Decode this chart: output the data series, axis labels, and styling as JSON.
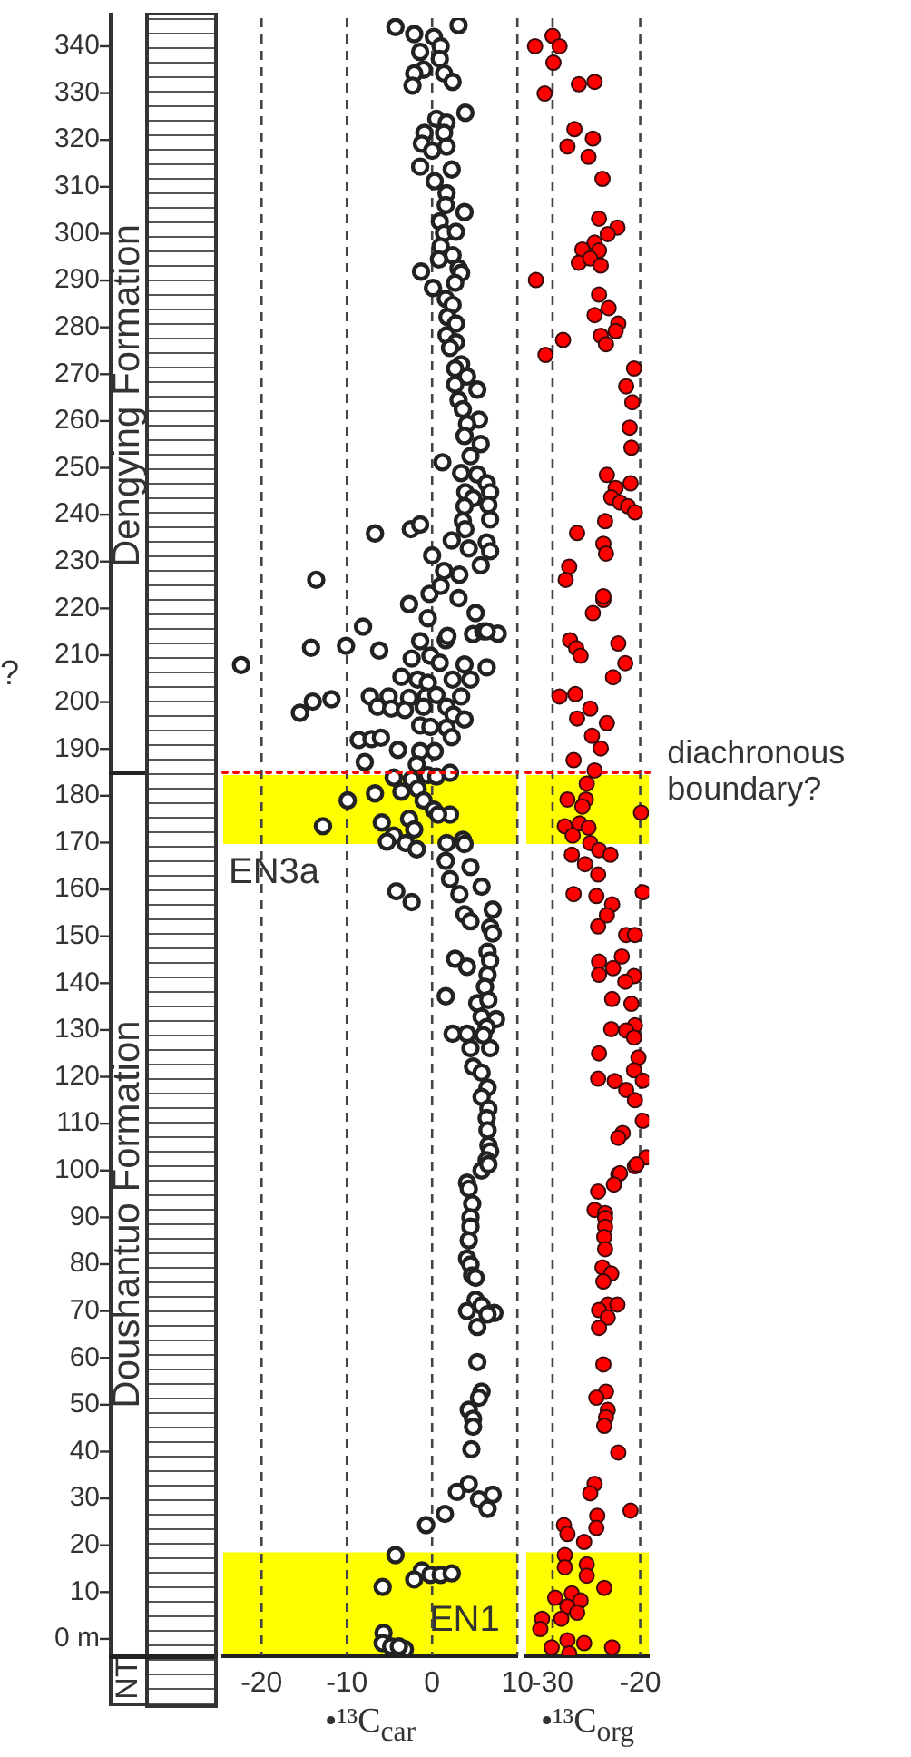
{
  "chart_data": [
    {
      "type": "scatter",
      "xlabel": "•¹³C$_{car}$",
      "xlim": [
        -24.5,
        10
      ],
      "xticks": [
        -20,
        -10,
        0,
        10
      ],
      "ylim": [
        -3.5,
        346
      ],
      "yticks": [
        {
          "value": 0,
          "label": "0 m"
        },
        10,
        20,
        30,
        40,
        50,
        60,
        70,
        80,
        90,
        100,
        110,
        120,
        130,
        140,
        150,
        160,
        170,
        180,
        190,
        200,
        210,
        220,
        230,
        240,
        250,
        260,
        270,
        280,
        290,
        300,
        310,
        320,
        330,
        340
      ],
      "grid": "x",
      "marker": "circle",
      "series": [
        {
          "color": "#222222",
          "x": [
            -4.3,
            3.1,
            -2.1,
            0.2,
            1.0,
            -1.4,
            0.9,
            -1.0,
            -2.1,
            1.4,
            2.4,
            -2.3,
            3.9,
            0.5,
            1.7,
            -0.9,
            1.4,
            -1.2,
            1.7,
            0,
            -1.4,
            2.3,
            0.3,
            1.7,
            1.6,
            3.8,
            0.9,
            1.4,
            2.8,
            1.0,
            2.4,
            0.8,
            3.1,
            -1.3,
            3.4,
            2.7,
            0.1,
            1.6,
            2.4,
            1.8,
            2.8,
            1.7,
            2.8,
            2.1,
            3.4,
            2.7,
            4.1,
            2.7,
            5.3,
            3.1,
            3.6,
            5.5,
            4.1,
            3.8,
            5.7,
            4.5,
            1.2,
            3.4,
            5.3,
            6.4,
            6.8,
            3.9,
            4.8,
            6.6,
            3.8,
            6.8,
            3.6,
            -2.5,
            -1.4,
            -6.7,
            3.9,
            2.3,
            6.4,
            4.3,
            6.8,
            0,
            5.7,
            1.4,
            3.2,
            -13.6,
            -0.3,
            1.0,
            3.1,
            -2.7,
            -0.5,
            5.1,
            -8.1,
            1.6,
            1.8,
            4.8,
            6.0,
            7.7,
            6.4,
            -14.2,
            -10.1,
            -6.2,
            -1.4,
            -2.4,
            -0.2,
            0.9,
            3.8,
            6.4,
            -22.4,
            -3.6,
            -1.7,
            -0.5,
            2.4,
            4.5,
            -5.1,
            -7.3,
            -2.7,
            -0.7,
            0.5,
            3.4,
            -11.8,
            -14,
            -15.5,
            -6.4,
            -4.8,
            -3.2,
            -1.0,
            1.7,
            2.5,
            3.8,
            -1.4,
            -0.2,
            1.7,
            -8.6,
            -7.1,
            -6.0,
            2.3,
            -4.0,
            -1.4,
            0.3,
            -7.9,
            -1.8,
            -4.5,
            -2.4,
            -0.5,
            2.1,
            0.5,
            -6.7,
            -3.6,
            -1.7,
            -9.9,
            -1.0,
            0.2,
            2.1,
            0.7,
            -2.7,
            -5.9,
            -12.8,
            -2.1,
            -4.5,
            -5.3,
            -3.1,
            -1.8,
            1.7,
            3.6,
            3.8,
            1.6,
            4.5,
            2.1,
            5.8,
            3.2,
            -4.2,
            -2.4,
            7.1,
            3.8,
            4.5,
            6.8,
            7.1,
            6.5,
            2.7,
            6.8,
            4.1,
            6.5,
            6.2,
            1.6,
            5.3,
            6.6,
            5.8,
            7.5,
            6.4,
            2.4,
            4.1,
            6.0,
            4.5,
            6.8,
            4.8,
            5.8,
            6.5,
            5.8,
            6.6,
            6.4,
            6.5,
            6.6,
            6.8,
            6.4,
            5.8,
            6.6,
            4.1,
            4.3,
            4.7,
            4.5,
            4.5,
            4.3,
            4.1,
            4.5,
            4.7,
            5.1,
            5.1,
            4.1,
            5.8,
            7.3,
            6.5,
            5.3,
            5.3,
            5.8,
            5.5,
            4.3,
            4.8,
            4.8,
            4.6,
            4.3,
            2.9,
            7.1,
            5.5,
            6.5,
            1.5,
            -0.7,
            -4.3,
            -1.2,
            -0.2,
            1.0,
            2.3,
            -2.1,
            -5.8,
            -5.7,
            -5.8,
            -4.8,
            -3.2,
            -3.9
          ],
          "values": [
            344.1,
            344.5,
            342.6,
            342,
            340,
            338.8,
            337.3,
            335,
            334.2,
            334.2,
            332.4,
            331.6,
            325.8,
            324.5,
            323.7,
            321.5,
            321.5,
            319.2,
            318.6,
            317.7,
            314.3,
            313.7,
            311.2,
            308.6,
            306.1,
            304.6,
            302.6,
            300.1,
            300.4,
            297.3,
            295.4,
            294.5,
            292.6,
            291.9,
            291.6,
            289.5,
            288.4,
            286.1,
            284.8,
            282.2,
            280.8,
            278.3,
            276.8,
            275.6,
            272.1,
            271.2,
            269.5,
            267.8,
            266.7,
            264.5,
            262.5,
            260.3,
            259.4,
            256.8,
            255.1,
            252.5,
            251.2,
            248.9,
            248.6,
            246.7,
            244.8,
            244.8,
            243.5,
            242.1,
            241.8,
            239,
            238.7,
            236.9,
            237.9,
            236,
            236.9,
            234.5,
            234.1,
            232.8,
            232.2,
            231.3,
            229.2,
            228,
            227.2,
            226.1,
            223.1,
            224.8,
            222.2,
            220.9,
            217.9,
            219,
            216.1,
            213.2,
            214.1,
            214.5,
            215.1,
            214.6,
            215.1,
            211.6,
            212,
            211,
            213,
            209.3,
            209.9,
            208.4,
            208,
            207.4,
            207.9,
            205.4,
            204.8,
            204.1,
            204.8,
            204.8,
            201.2,
            201.2,
            200.9,
            201.2,
            201.5,
            201.2,
            200.6,
            200.1,
            197.7,
            199,
            198.6,
            198.3,
            199,
            199,
            197.3,
            196.3,
            195,
            194.7,
            194.5,
            191.9,
            192.1,
            192.4,
            192.5,
            189.8,
            189.5,
            189.5,
            187.2,
            186.7,
            183.9,
            183.5,
            184.4,
            184.9,
            184.1,
            180.5,
            180.9,
            181.5,
            179,
            179,
            177,
            176,
            176,
            175.1,
            174.3,
            173.5,
            172.8,
            171.5,
            170.2,
            169.9,
            168.6,
            169.9,
            170.6,
            169.7,
            166.1,
            164.8,
            162.2,
            160.6,
            159,
            159.6,
            157.3,
            155.7,
            154.7,
            153.2,
            151.9,
            150.6,
            146.7,
            145.2,
            144.8,
            143.5,
            141.8,
            139.2,
            137.2,
            135.7,
            136.4,
            132.8,
            132.3,
            130.6,
            129.2,
            129.2,
            128.9,
            126.1,
            126.1,
            122.2,
            120.9,
            117.7,
            115.7,
            113.2,
            111.2,
            108.6,
            105.4,
            104.1,
            102.2,
            100,
            101.3,
            97.4,
            96.1,
            92.9,
            90,
            88,
            85.1,
            81.2,
            79.9,
            77.6,
            77.1,
            72.4,
            70,
            71.2,
            69.6,
            69.3,
            66.6,
            59.1,
            52.8,
            51.5,
            48.9,
            47,
            45.3,
            40.5,
            33.1,
            31.4,
            30.8,
            29.8,
            27.8,
            26.7,
            24.3,
            17.9,
            14.6,
            13.7,
            13.7,
            14,
            12.7,
            11.1,
            1.3,
            -0.9,
            -1.6,
            -2.2,
            -1.6
          ]
        }
      ],
      "bands": [
        {
          "axis": "y",
          "from": 169.7,
          "to": 184.4,
          "color": "#ffff00",
          "label": "EN3a"
        },
        {
          "axis": "y",
          "from": -3.1,
          "to": 18.5,
          "color": "#ffff00",
          "label": "EN1"
        }
      ],
      "ref_lines": [
        {
          "axis": "y",
          "value": 185,
          "color": "#ff0000",
          "line_style": "dotted"
        }
      ],
      "annotations": [
        "Dengying Formation",
        "Doushantuo Formation",
        "NT",
        "?"
      ]
    },
    {
      "type": "scatter",
      "xlabel": "•¹³C$_{org}$",
      "xlim": [
        -33,
        -19
      ],
      "xticks": [
        -30,
        -20
      ],
      "ylim": [
        -3.5,
        346
      ],
      "tick_labels": "x",
      "grid": "x",
      "marker": "circle",
      "series": [
        {
          "color": "#ff0000",
          "x": [
            -32,
            -30,
            -29.2,
            -29.9,
            -30.9,
            -27,
            -25.2,
            -27.5,
            -25.4,
            -28.3,
            -25.9,
            -24.3,
            -24.7,
            -22.6,
            -23.7,
            -25.2,
            -26.6,
            -24.7,
            -27,
            -25.7,
            -24.5,
            -31.9,
            -24.7,
            -23.6,
            -25.2,
            -22.5,
            -22.8,
            -28.8,
            -24.5,
            -23.9,
            -30.8,
            -20.7,
            -21.6,
            -20.9,
            -21.2,
            -21.0,
            -23.8,
            -21.1,
            -22.8,
            -23.3,
            -22.3,
            -21.4,
            -20.6,
            -24,
            -27.2,
            -24.2,
            -23.9,
            -28.1,
            -28.5,
            -24.2,
            -24.2,
            -25.4,
            -28,
            -27.3,
            -26.8,
            -22.5,
            -21.7,
            -23.1,
            -29.2,
            -27.4,
            -25.7,
            -27.2,
            -23.8,
            -25.5,
            -24.5,
            -27.6,
            -25.2,
            -26.1,
            -28.3,
            -26.2,
            -26.6,
            -19.9,
            -28.6,
            -26.9,
            -25.9,
            -27.7,
            -25.7,
            -24.7,
            -23.4,
            -27.8,
            -26.3,
            -24.8,
            -27.6,
            -25,
            -19.7,
            -23.2,
            -23.8,
            -24.8,
            -21.6,
            -20.6,
            -22.1,
            -24.7,
            -23.1,
            -24.7,
            -20.7,
            -21.7,
            -23.2,
            -21.0,
            -20.6,
            -23.3,
            -21.6,
            -20.7,
            -24.7,
            -20.2,
            -20.7,
            -24.8,
            -22.9,
            -19.7,
            -21.6,
            -20.6,
            -19.7,
            -22,
            -22.5,
            -19.3,
            -20.6,
            -22.5,
            -20.4,
            -22.3,
            -23,
            -24.8,
            -25.2,
            -24,
            -24,
            -24,
            -24.1,
            -24,
            -24.3,
            -23.3,
            -24.2,
            -23.7,
            -22.6,
            -24.7,
            -23.7,
            -24.7,
            -24.2,
            -23.9,
            -25,
            -23.7,
            -23.9,
            -24.1,
            -22.5,
            -25.2,
            -25.7,
            -21.1,
            -24.9,
            -25,
            -28.7,
            -28.3,
            -26.4,
            -28.6,
            -26.1,
            -28.6,
            -26.1,
            -24.1,
            -29.7,
            -27.8,
            -26.8,
            -28.3,
            -27.2,
            -31.2,
            -29,
            -31.4,
            -28.3,
            -26.4,
            -30.1,
            -23.2,
            -28.1
          ],
          "values": [
            340,
            342.2,
            340,
            336.5,
            329.9,
            331.9,
            332.4,
            322.3,
            320.3,
            318.6,
            316.4,
            311.7,
            303.2,
            301.3,
            299.9,
            298.1,
            296.6,
            296.4,
            293.8,
            294.7,
            293.2,
            290.1,
            287,
            284.1,
            282.6,
            280.8,
            279.2,
            277.3,
            278.2,
            276.4,
            274.1,
            271.2,
            267.4,
            264,
            258.6,
            254.3,
            248.5,
            246.7,
            245.7,
            243.7,
            242.6,
            241.8,
            240.5,
            238.6,
            236.1,
            233.8,
            231.7,
            228.9,
            226.1,
            221.8,
            222.6,
            219,
            213.2,
            211.5,
            209.9,
            212.5,
            208.3,
            205.3,
            201.2,
            201.7,
            198.6,
            196.5,
            195.5,
            192.8,
            190.1,
            187.6,
            185.4,
            182.6,
            179.2,
            179.2,
            177.7,
            176.4,
            173.5,
            174.1,
            173.2,
            171.5,
            169.9,
            168.4,
            167.4,
            167.4,
            165.4,
            163.2,
            159,
            158.6,
            159.4,
            156.8,
            154.5,
            152.1,
            150.3,
            150.3,
            145.7,
            144.6,
            143.2,
            141.8,
            141.5,
            140.3,
            136.6,
            135.6,
            131,
            130.2,
            129.9,
            128.4,
            125,
            124.1,
            121.4,
            119.6,
            119.1,
            119.2,
            117.2,
            115,
            110.6,
            108,
            107,
            102.8,
            100.9,
            99.2,
            101.3,
            99.4,
            97,
            95.5,
            91.6,
            90.9,
            89.9,
            88,
            85.8,
            83.2,
            79.3,
            78,
            76.3,
            71.4,
            71.4,
            70.2,
            68.6,
            66.4,
            58.6,
            52.8,
            51.5,
            48.9,
            47.3,
            45.5,
            39.8,
            33.1,
            31.1,
            27.4,
            26.3,
            23.7,
            24.3,
            22.4,
            20.7,
            17.9,
            15.9,
            15.3,
            13.5,
            10.9,
            8.8,
            9.7,
            8.2,
            6.9,
            5.6,
            4.3,
            4.3,
            2.1,
            -0.3,
            -0.9,
            -1.8,
            -1.8,
            -3.1
          ]
        }
      ],
      "bands": [
        {
          "axis": "y",
          "from": 169.7,
          "to": 184.4,
          "color": "#ffff00"
        },
        {
          "axis": "y",
          "from": -3.1,
          "to": 18.5,
          "color": "#ffff00"
        }
      ],
      "ref_lines": [
        {
          "axis": "y",
          "value": 185,
          "label": "diachronous boundary?",
          "color": "#ff0000",
          "line_style": "dotted"
        }
      ]
    }
  ]
}
